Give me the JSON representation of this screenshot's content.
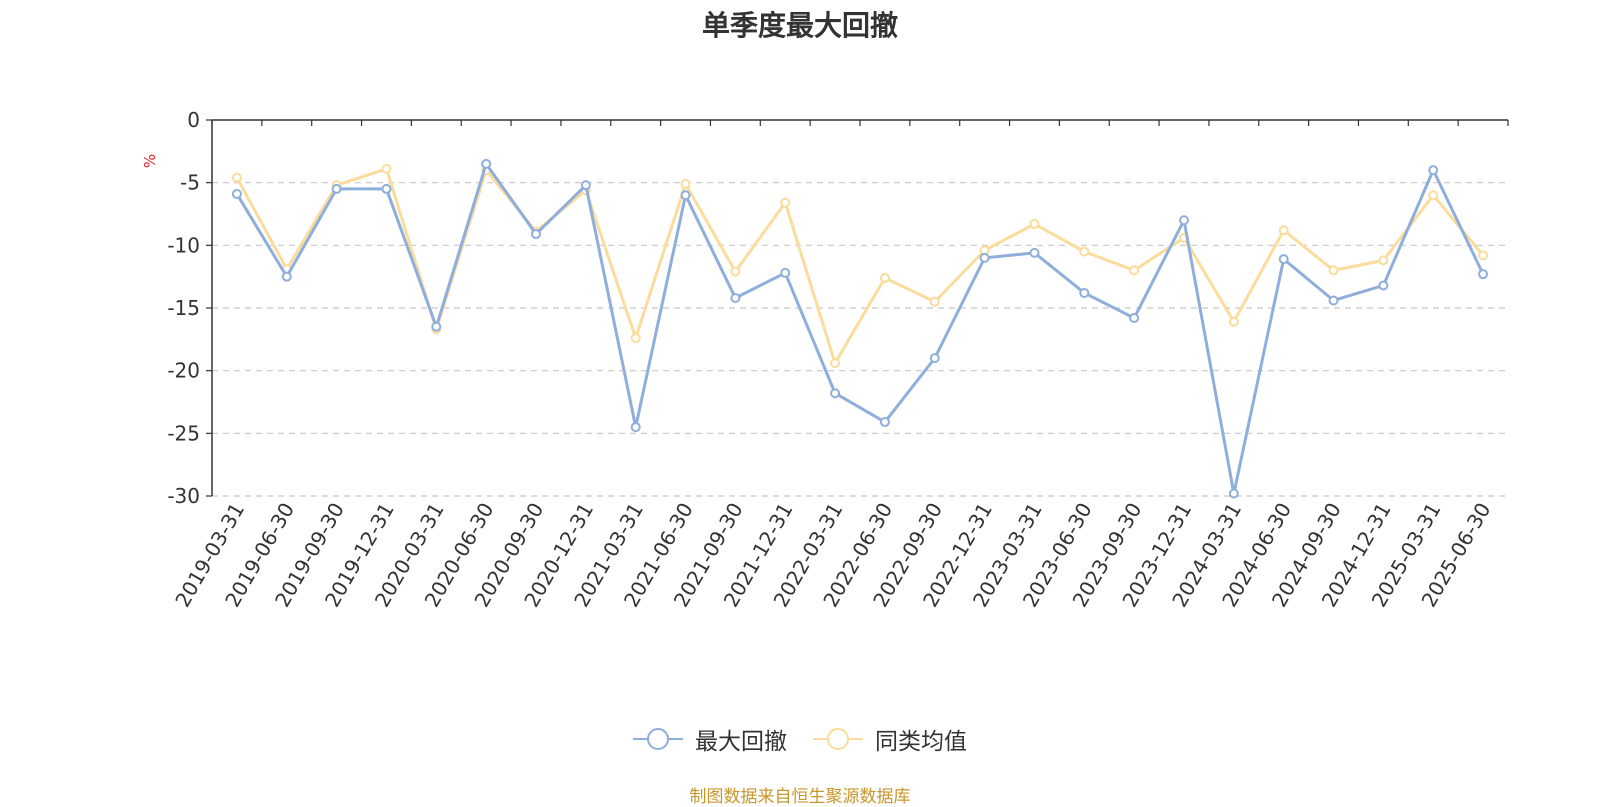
{
  "chart_data": {
    "type": "line",
    "title": "单季度最大回撤",
    "ylabel": "%",
    "ylim": [
      -30,
      0
    ],
    "yticks": [
      0,
      -5,
      -10,
      -15,
      -20,
      -25,
      -30
    ],
    "grid": true,
    "legend_position": "bottom",
    "categories": [
      "2019-03-31",
      "2019-06-30",
      "2019-09-30",
      "2019-12-31",
      "2020-03-31",
      "2020-06-30",
      "2020-09-30",
      "2020-12-31",
      "2021-03-31",
      "2021-06-30",
      "2021-09-30",
      "2021-12-31",
      "2022-03-31",
      "2022-06-30",
      "2022-09-30",
      "2022-12-31",
      "2023-03-31",
      "2023-06-30",
      "2023-09-30",
      "2023-12-31",
      "2024-03-31",
      "2024-06-30",
      "2024-09-30",
      "2024-12-31",
      "2025-03-31",
      "2025-06-30"
    ],
    "series": [
      {
        "name": "最大回撤",
        "color": "#8eaedc",
        "values": [
          -5.9,
          -12.5,
          -5.5,
          -5.5,
          -16.5,
          -3.5,
          -9.1,
          -5.2,
          -24.5,
          -6.0,
          -14.2,
          -12.2,
          -21.8,
          -24.1,
          -19.0,
          -11.0,
          -10.6,
          -13.8,
          -15.8,
          -8.0,
          -29.8,
          -11.1,
          -14.4,
          -13.2,
          -4.0,
          -12.3
        ]
      },
      {
        "name": "同类均值",
        "color": "#fbdc9c",
        "values": [
          -4.6,
          -11.9,
          -5.2,
          -3.9,
          -16.7,
          -4.0,
          -8.9,
          -5.6,
          -17.4,
          -5.1,
          -12.1,
          -6.6,
          -19.4,
          -12.6,
          -14.5,
          -10.4,
          -8.3,
          -10.5,
          -12.0,
          -9.4,
          -16.1,
          -8.8,
          -12.0,
          -11.2,
          -6.0,
          -10.8
        ]
      }
    ]
  },
  "footer": "制图数据来自恒生聚源数据库"
}
